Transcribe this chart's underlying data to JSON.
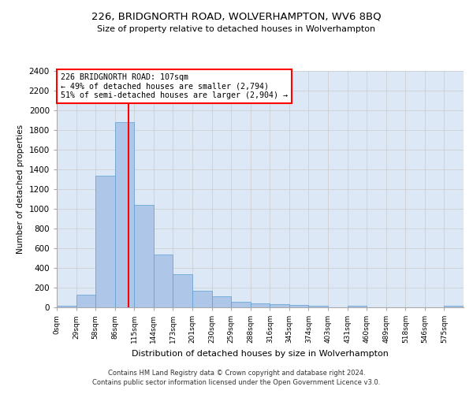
{
  "title": "226, BRIDGNORTH ROAD, WOLVERHAMPTON, WV6 8BQ",
  "subtitle": "Size of property relative to detached houses in Wolverhampton",
  "xlabel": "Distribution of detached houses by size in Wolverhampton",
  "ylabel": "Number of detached properties",
  "bar_labels": [
    "0sqm",
    "29sqm",
    "58sqm",
    "86sqm",
    "115sqm",
    "144sqm",
    "173sqm",
    "201sqm",
    "230sqm",
    "259sqm",
    "288sqm",
    "316sqm",
    "345sqm",
    "374sqm",
    "403sqm",
    "431sqm",
    "460sqm",
    "489sqm",
    "518sqm",
    "546sqm",
    "575sqm"
  ],
  "bar_values": [
    20,
    125,
    1340,
    1880,
    1040,
    540,
    335,
    165,
    110,
    60,
    40,
    30,
    25,
    20,
    0,
    20,
    0,
    0,
    0,
    0,
    20
  ],
  "bar_color": "#aec6e8",
  "bar_edge_color": "#5a9fd4",
  "vline_x": 107,
  "annotation_text_line1": "226 BRIDGNORTH ROAD: 107sqm",
  "annotation_text_line2": "← 49% of detached houses are smaller (2,794)",
  "annotation_text_line3": "51% of semi-detached houses are larger (2,904) →",
  "vline_color": "red",
  "ylim": [
    0,
    2400
  ],
  "yticks": [
    0,
    200,
    400,
    600,
    800,
    1000,
    1200,
    1400,
    1600,
    1800,
    2000,
    2200,
    2400
  ],
  "grid_color": "#cccccc",
  "bg_color": "#dce8f5",
  "footer_line1": "Contains HM Land Registry data © Crown copyright and database right 2024.",
  "footer_line2": "Contains public sector information licensed under the Open Government Licence v3.0.",
  "bin_width": 29
}
